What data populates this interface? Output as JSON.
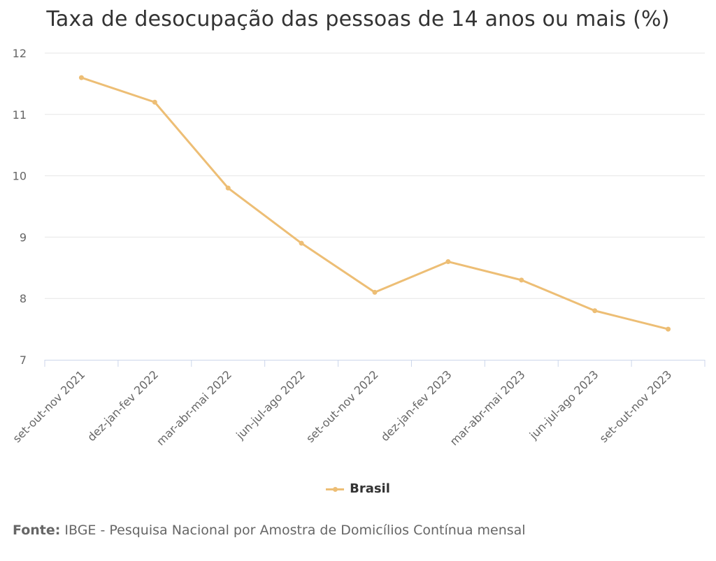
{
  "chart_data": {
    "type": "line",
    "title": "Taxa de desocupação das pessoas de 14 anos ou mais (%)",
    "categories": [
      "set-out-nov 2021",
      "dez-jan-fev 2022",
      "mar-abr-mai 2022",
      "jun-jul-ago 2022",
      "set-out-nov 2022",
      "dez-jan-fev 2023",
      "mar-abr-mai 2023",
      "jun-jul-ago 2023",
      "set-out-nov 2023"
    ],
    "series": [
      {
        "name": "Brasil",
        "color": "#EDBE75",
        "values": [
          11.6,
          11.2,
          9.8,
          8.9,
          8.1,
          8.6,
          8.3,
          7.8,
          7.5
        ]
      }
    ],
    "ylim": [
      7,
      12
    ],
    "yticks": [
      "7",
      "8",
      "9",
      "10",
      "11",
      "12"
    ],
    "grid": true,
    "legend": "bottom-center"
  },
  "source": {
    "label": "Fonte:",
    "text": "IBGE - Pesquisa Nacional por Amostra de Domicílios Contínua mensal"
  },
  "colors": {
    "grid": "#E6E6E6",
    "axis": "#CCD6EB",
    "series": "#EDBE75"
  }
}
